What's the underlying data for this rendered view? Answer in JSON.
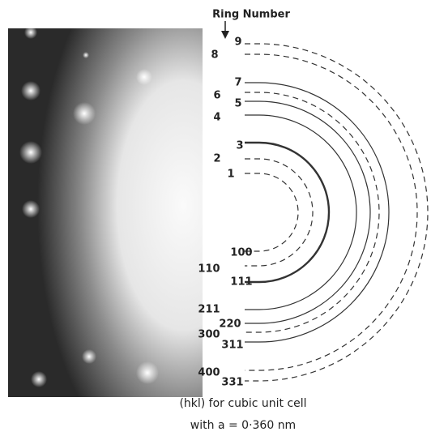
{
  "header": "Ring Number",
  "rings": [
    {
      "number": "1",
      "hkl": "100"
    },
    {
      "number": "2",
      "hkl": "110"
    },
    {
      "number": "3",
      "hkl": "111"
    },
    {
      "number": "4",
      "hkl": "211"
    },
    {
      "number": "5",
      "hkl": "220"
    },
    {
      "number": "6",
      "hkl": "300"
    },
    {
      "number": "7",
      "hkl": "311"
    },
    {
      "number": "8",
      "hkl": "400"
    },
    {
      "number": "9",
      "hkl": "331"
    }
  ],
  "caption": [
    "(hkl) for cubic unit cell",
    "with a = 0·360 nm"
  ]
}
